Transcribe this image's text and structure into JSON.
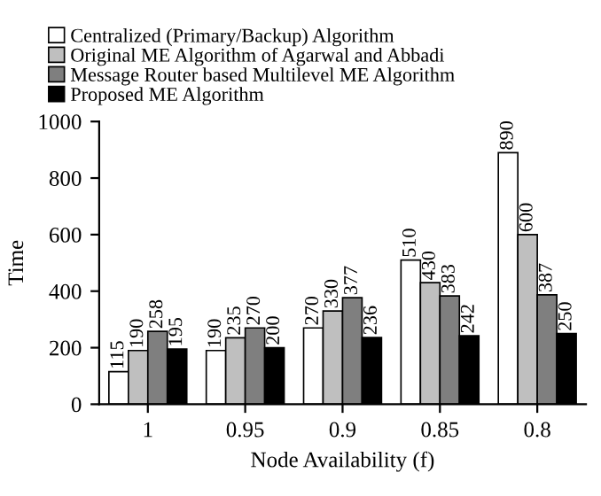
{
  "chart_data": {
    "type": "bar",
    "xlabel": "Node Availability (f)",
    "ylabel": "Time",
    "categories": [
      "1",
      "0.95",
      "0.9",
      "0.85",
      "0.8"
    ],
    "series": [
      {
        "name": "Centralized (Primary/Backup) Algorithm",
        "color": "#ffffff",
        "values": [
          115,
          190,
          270,
          510,
          890
        ]
      },
      {
        "name": "Original ME Algorithm of Agarwal and Abbadi",
        "color": "#bfbfbf",
        "values": [
          190,
          235,
          330,
          430,
          600
        ]
      },
      {
        "name": "Message Router based Multilevel ME Algorithm",
        "color": "#7f7f7f",
        "values": [
          258,
          270,
          377,
          383,
          387
        ]
      },
      {
        "name": "Proposed ME Algorithm",
        "color": "#000000",
        "values": [
          195,
          200,
          236,
          242,
          250
        ]
      }
    ],
    "ylim": [
      0,
      1000
    ],
    "yticks": [
      0,
      200,
      400,
      600,
      800,
      1000
    ],
    "data_labels": true,
    "legend": "top",
    "grid": false
  }
}
